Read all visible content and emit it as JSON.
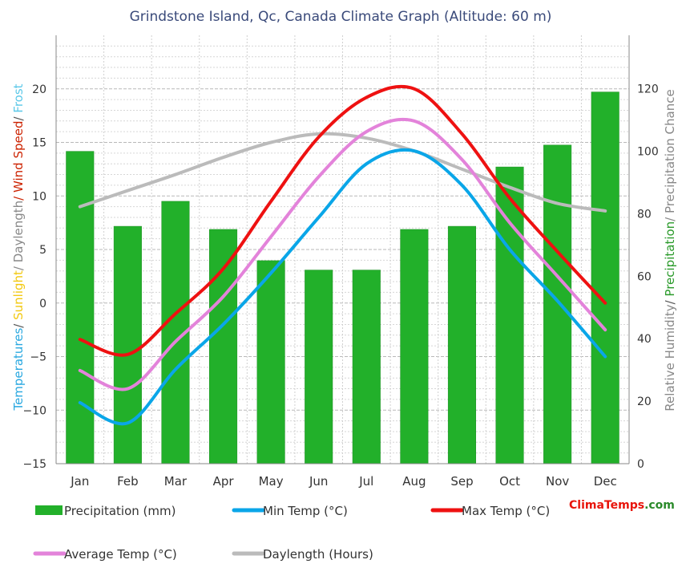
{
  "chart_data": {
    "type": "bar+line",
    "title": "Grindstone Island, Qc, Canada Climate Graph (Altitude: 60 m)",
    "categories": [
      "Jan",
      "Feb",
      "Mar",
      "Apr",
      "May",
      "Jun",
      "Jul",
      "Aug",
      "Sep",
      "Oct",
      "Nov",
      "Dec"
    ],
    "y_left": {
      "range": [
        -15,
        25
      ],
      "ticks": [
        -15,
        -10,
        -5,
        0,
        5,
        10,
        15,
        20
      ],
      "label_parts": [
        {
          "text": "Temperatures",
          "color": "#29a8e0"
        },
        {
          "text": "/ ",
          "color": "#555555"
        },
        {
          "text": "Sunlight",
          "color": "#f2c80f"
        },
        {
          "text": "/ Daylength",
          "color": "#888888"
        },
        {
          "text": "/ Wind Speed",
          "color": "#cc2200"
        },
        {
          "text": "/ ",
          "color": "#555555"
        },
        {
          "text": "Frost",
          "color": "#5bc8e8"
        }
      ]
    },
    "y_right": {
      "range": [
        0,
        137.14
      ],
      "ticks": [
        0,
        20,
        40,
        60,
        80,
        100,
        120
      ],
      "label_parts": [
        {
          "text": "Relative Humidity",
          "color": "#888888"
        },
        {
          "text": "/ ",
          "color": "#555555"
        },
        {
          "text": "Precipitation",
          "color": "#2a9a2a"
        },
        {
          "text": "/ Precipitation Chance",
          "color": "#888888"
        }
      ]
    },
    "series": [
      {
        "name": "Precipitation (mm)",
        "kind": "bar",
        "axis": "right",
        "color": "#22b02a",
        "values": [
          100,
          76,
          84,
          75,
          65,
          62,
          62,
          75,
          76,
          95,
          102,
          119
        ]
      },
      {
        "name": "Min Temp (°C)",
        "kind": "line",
        "axis": "left",
        "color": "#0aa6e8",
        "values": [
          -9.3,
          -11.2,
          -6.2,
          -2.0,
          2.8,
          8.0,
          13.0,
          14.2,
          11.0,
          5.0,
          0.2,
          -5.0
        ]
      },
      {
        "name": "Max Temp (°C)",
        "kind": "line",
        "axis": "left",
        "color": "#ee1111",
        "values": [
          -3.4,
          -4.8,
          -1.0,
          3.2,
          9.5,
          15.5,
          19.2,
          20.0,
          15.8,
          9.8,
          4.8,
          0.0
        ]
      },
      {
        "name": "Average Temp (°C)",
        "kind": "line",
        "axis": "left",
        "color": "#e383da",
        "values": [
          -6.3,
          -8.0,
          -3.6,
          0.6,
          6.2,
          11.8,
          16.0,
          17.0,
          13.4,
          7.5,
          2.5,
          -2.5
        ]
      },
      {
        "name": "Daylength (Hours)",
        "kind": "line",
        "axis": "left",
        "color": "#bbbbbb",
        "values": [
          9.0,
          10.5,
          12.0,
          13.6,
          15.0,
          15.8,
          15.4,
          14.2,
          12.5,
          10.8,
          9.3,
          8.6
        ]
      }
    ],
    "legend": {
      "placement": "bottom",
      "rows": [
        [
          "Precipitation (mm)",
          "Min Temp (°C)",
          "Max Temp (°C)"
        ],
        [
          "Average Temp (°C)",
          "Daylength (Hours)"
        ]
      ]
    },
    "brand": {
      "part1": "Clima",
      "part2": "Temps",
      "part3": ".com",
      "color1": "#e8140a",
      "color2": "#e8140a",
      "color3": "#2a8a2a"
    },
    "grid": true
  }
}
